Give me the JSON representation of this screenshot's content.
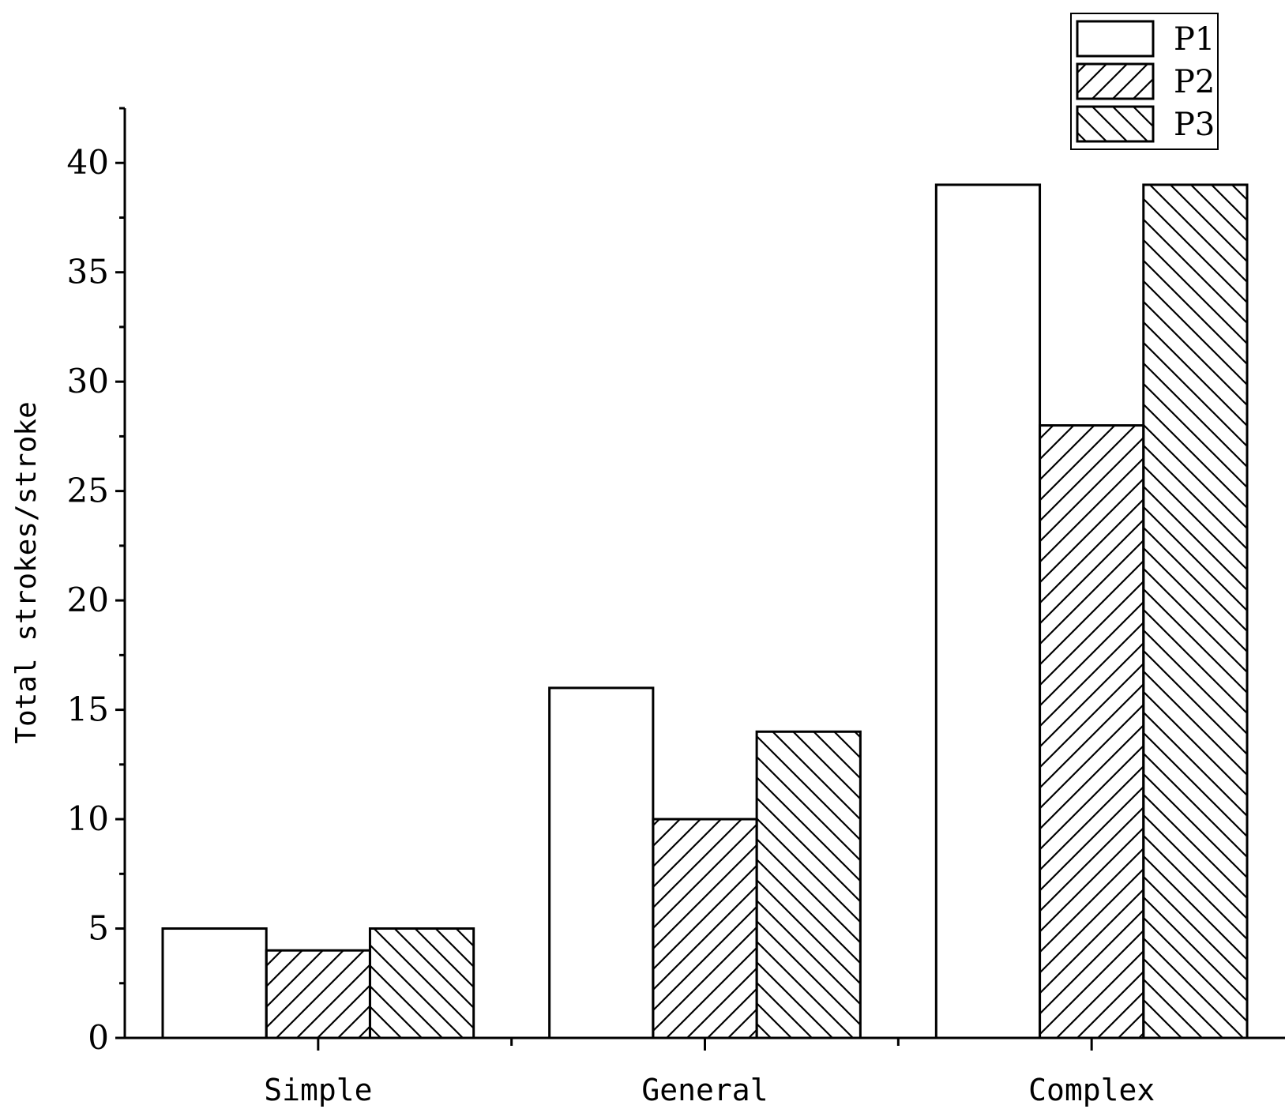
{
  "chart_data": {
    "type": "bar",
    "title": "",
    "xlabel": "",
    "ylabel": "Total strokes/stroke",
    "categories": [
      "Simple",
      "General",
      "Complex"
    ],
    "series": [
      {
        "name": "P1",
        "values": [
          5,
          16,
          39
        ],
        "pattern": "none"
      },
      {
        "name": "P2",
        "values": [
          4,
          10,
          28
        ],
        "pattern": "diagonal-forward"
      },
      {
        "name": "P3",
        "values": [
          5,
          14,
          39
        ],
        "pattern": "diagonal-backward"
      }
    ],
    "ylim": [
      0,
      42.5
    ],
    "yticks": [
      "0",
      "5",
      "10",
      "15",
      "20",
      "25",
      "30",
      "35",
      "40"
    ],
    "grid": false,
    "legend_position": "top-right",
    "colors": {
      "bar_fill": "#ffffff",
      "stroke": "#000000"
    }
  }
}
